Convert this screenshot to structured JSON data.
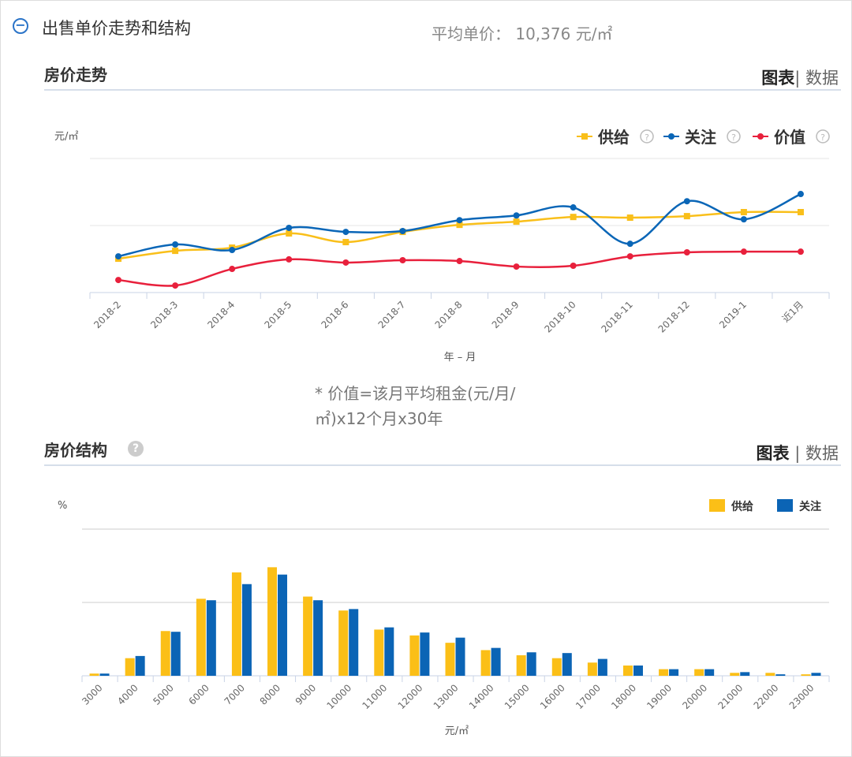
{
  "section": {
    "title": "出售单价走势和结构",
    "collapse_icon": "minus-circle-icon",
    "avg_label": "平均单价：",
    "avg_value": "10,376 元/㎡"
  },
  "trend": {
    "title": "房价走势",
    "toggle_chart": "图表",
    "toggle_sep": "|",
    "toggle_data": "数据",
    "note": "* 价值=该月平均租金(元/月/㎡)x12个月x30年"
  },
  "structure": {
    "title": "房价结构",
    "help_icon": "question-circle-icon",
    "toggle_chart": "图表",
    "toggle_sep": "|",
    "toggle_data": "数据"
  },
  "chart_data": [
    {
      "type": "line",
      "title": "",
      "xlabel": "年 – 月",
      "ylabel": "元/㎡",
      "ylim": [
        8000,
        12000
      ],
      "yticks": [
        "8k",
        "10k",
        "12k"
      ],
      "grid": true,
      "legend": "top-right",
      "smooth": true,
      "categories": [
        "2018-2",
        "2018-3",
        "2018-4",
        "2018-5",
        "2018-6",
        "2018-7",
        "2018-8",
        "2018-9",
        "2018-10",
        "2018-11",
        "2018-12",
        "2019-1",
        "近1月"
      ],
      "series": [
        {
          "name": "供给",
          "color": "#f9bf1a",
          "marker": "square",
          "values": [
            9010,
            9245,
            9340,
            9765,
            9505,
            9810,
            10020,
            10115,
            10255,
            10235,
            10280,
            10400,
            10400
          ]
        },
        {
          "name": "关注",
          "color": "#0a66b7",
          "marker": "circle",
          "values": [
            9080,
            9435,
            9270,
            9930,
            9810,
            9835,
            10160,
            10300,
            10540,
            9455,
            10725,
            10185,
            10940
          ]
        },
        {
          "name": "价值",
          "color": "#e8203c",
          "marker": "circle",
          "values": [
            8375,
            8210,
            8705,
            8990,
            8895,
            8965,
            8940,
            8775,
            8800,
            9080,
            9200,
            9220,
            9220
          ]
        }
      ]
    },
    {
      "type": "bar",
      "title": "",
      "xlabel": "元/㎡",
      "ylabel": "%",
      "ylim": [
        0,
        20
      ],
      "yticks": [
        "0",
        "10",
        "20"
      ],
      "grid": true,
      "legend": "top-right",
      "categories": [
        "3000",
        "4000",
        "5000",
        "6000",
        "7000",
        "8000",
        "9000",
        "10000",
        "11000",
        "12000",
        "13000",
        "14000",
        "15000",
        "16000",
        "17000",
        "18000",
        "19000",
        "20000",
        "21000",
        "22000",
        "23000"
      ],
      "series": [
        {
          "name": "供给",
          "color": "#fbbf17",
          "values": [
            0.3,
            2.4,
            6.1,
            10.5,
            14.1,
            14.8,
            10.8,
            8.9,
            6.3,
            5.5,
            4.5,
            3.5,
            2.8,
            2.4,
            1.8,
            1.4,
            0.9,
            0.9,
            0.4,
            0.4,
            0.2
          ]
        },
        {
          "name": "关注",
          "color": "#0b64b5",
          "values": [
            0.3,
            2.7,
            6.0,
            10.3,
            12.5,
            13.8,
            10.3,
            9.1,
            6.6,
            5.9,
            5.2,
            3.8,
            3.2,
            3.1,
            2.3,
            1.4,
            0.9,
            0.9,
            0.5,
            0.2,
            0.4
          ]
        }
      ]
    }
  ]
}
